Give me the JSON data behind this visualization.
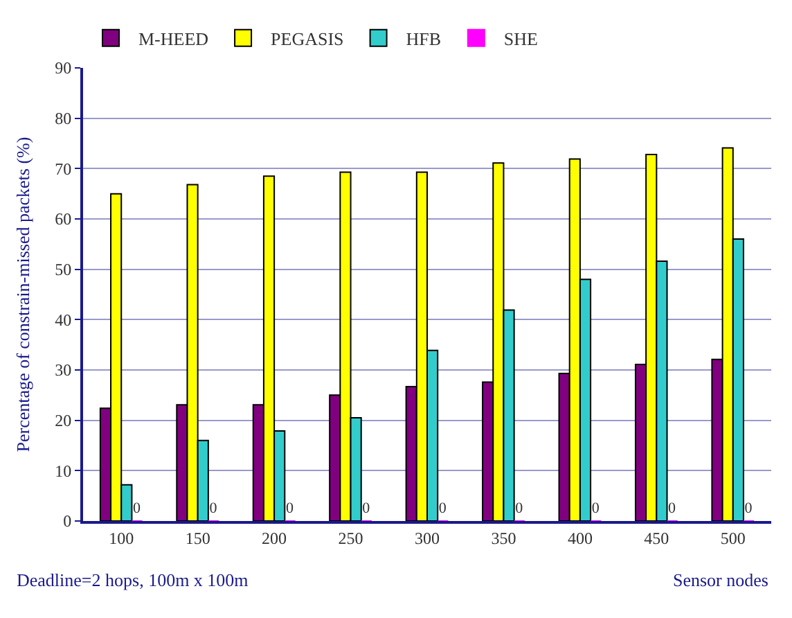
{
  "chart_data": {
    "type": "bar",
    "xlabel": "Sensor nodes",
    "ylabel": "Percentage of constrain-missed packets (%)",
    "categories": [
      "100",
      "150",
      "200",
      "250",
      "300",
      "350",
      "400",
      "450",
      "500"
    ],
    "series": [
      {
        "name": "M-HEED",
        "color": "#800080",
        "values": [
          22.4,
          23.1,
          23.1,
          25,
          26.7,
          27.6,
          29.3,
          31.1,
          32.1
        ]
      },
      {
        "name": "PEGASIS",
        "color": "#ffff00",
        "values": [
          65,
          66.8,
          68.5,
          69.3,
          69.3,
          71.1,
          71.9,
          72.8,
          74.1
        ]
      },
      {
        "name": "HFB",
        "color": "#33cccc",
        "values": [
          7.2,
          16,
          17.9,
          20.5,
          33.9,
          41.9,
          48,
          51.6,
          56
        ]
      },
      {
        "name": "SHE",
        "color": "#ff00ff",
        "values": [
          0,
          0,
          0,
          0,
          0,
          0,
          0,
          0,
          0
        ],
        "value_labels": [
          "0",
          "0",
          "0",
          "0",
          "0",
          "0",
          "0",
          "0",
          "0"
        ]
      }
    ],
    "ylim": [
      0,
      90
    ],
    "yticks": [
      0,
      10,
      20,
      30,
      40,
      50,
      60,
      70,
      80,
      90
    ],
    "grid": "y",
    "legend": "top left",
    "annotations": [
      "Deadline=2 hops, 100m x 100m"
    ]
  }
}
